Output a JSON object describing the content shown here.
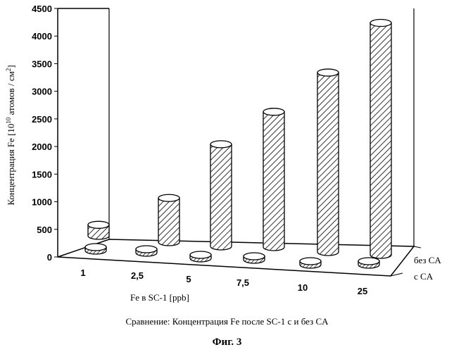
{
  "chart_data": {
    "type": "bar",
    "style": "3d-cylinder-hatched",
    "title": "",
    "ylabel_main": "Концентрация Fe [10",
    "ylabel_sup1": "10",
    "ylabel_mid": " атомов / см",
    "ylabel_sup2": "2",
    "ylabel_end": "]",
    "xlabel": "Fe в SC-1 [ppb]",
    "ylim": [
      0,
      4500
    ],
    "yticks": [
      "0",
      "500",
      "1000",
      "1500",
      "2000",
      "2500",
      "3000",
      "3500",
      "4000",
      "4500"
    ],
    "categories": [
      "1",
      "2,5",
      "5",
      "7,5",
      "10",
      "25"
    ],
    "series": [
      {
        "name": "без CA",
        "values": [
          200,
          800,
          1850,
          2450,
          3250,
          4200
        ]
      },
      {
        "name": "c CA",
        "values": [
          60,
          60,
          60,
          60,
          60,
          60
        ]
      }
    ]
  },
  "caption": "Сравнение: Концентрация Fe после SC-1 c и без CA",
  "fig_label": "Фиг. 3"
}
